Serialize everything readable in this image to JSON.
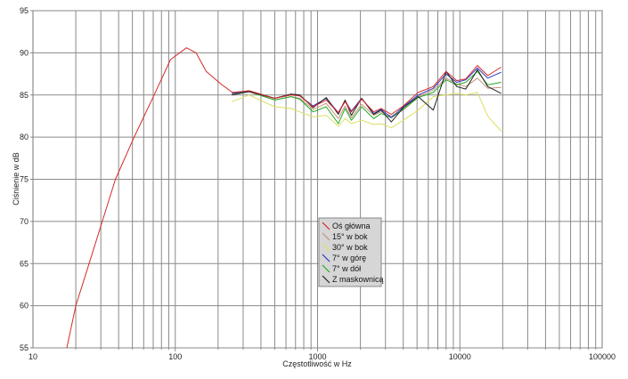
{
  "chart_data": {
    "type": "line",
    "title": "",
    "xlabel": "Częstotliwość w Hz",
    "ylabel": "Ciśnienie w dB",
    "xscale": "log",
    "xlim": [
      10,
      100000
    ],
    "ylim": [
      55,
      95
    ],
    "xticks": [
      "10",
      "100",
      "1000",
      "10000",
      "100000"
    ],
    "yticks": [
      "55",
      "60",
      "65",
      "70",
      "75",
      "80",
      "85",
      "90",
      "95"
    ],
    "grid": true,
    "legend_position": "center",
    "series": [
      {
        "name": "Oś główna",
        "color": "#d42a2a",
        "x": [
          17.3,
          20,
          24.8,
          30.7,
          38,
          51.4,
          71,
          92.6,
          120,
          140,
          165,
          213,
          253,
          330,
          500,
          650,
          750,
          930,
          1150,
          1400,
          1560,
          1730,
          2040,
          2480,
          2800,
          3300,
          4000,
          5100,
          6500,
          8000,
          9500,
          11000,
          13300,
          15700,
          19500
        ],
        "y": [
          55,
          60,
          65,
          70,
          75,
          80,
          85,
          89.2,
          90.6,
          90,
          87.8,
          86.2,
          85.3,
          85.5,
          84.6,
          85.0,
          84.9,
          83.6,
          84.4,
          82.9,
          84.2,
          83.0,
          84.5,
          83.0,
          83.4,
          82.7,
          83.7,
          85.3,
          86.0,
          87.8,
          86.7,
          86.9,
          88.5,
          87.3,
          88.3
        ]
      },
      {
        "name": "15° w bok",
        "color": "#c8907a",
        "x": [
          250,
          330,
          500,
          650,
          750,
          930,
          1150,
          1400,
          1560,
          1730,
          2040,
          2480,
          2800,
          3300,
          4000,
          5100,
          6500,
          8000,
          9500,
          11000,
          13300,
          15700,
          19500
        ],
        "y": [
          85.1,
          85.4,
          84.4,
          84.8,
          84.6,
          83.3,
          84.0,
          82.2,
          83.7,
          82.3,
          83.9,
          82.6,
          83.0,
          82.5,
          83.2,
          84.8,
          85.6,
          87.0,
          86.3,
          86.0,
          87.0,
          85.8,
          85.9
        ]
      },
      {
        "name": "30° w bok",
        "color": "#dede60",
        "x": [
          250,
          330,
          500,
          650,
          750,
          930,
          1150,
          1400,
          1560,
          1730,
          2040,
          2480,
          2800,
          3300,
          4000,
          5100,
          6500,
          8000,
          9500,
          11000,
          13300,
          15700,
          19500
        ],
        "y": [
          84.2,
          85.0,
          83.6,
          83.4,
          83.0,
          82.4,
          82.6,
          81.3,
          82.2,
          81.6,
          82.0,
          81.5,
          81.6,
          81.1,
          82.0,
          83.2,
          84.8,
          85.0,
          85.2,
          85.0,
          85.3,
          82.5,
          80.7
        ]
      },
      {
        "name": "7° w górę",
        "color": "#2a36c0",
        "x": [
          250,
          330,
          500,
          650,
          750,
          930,
          1150,
          1400,
          1560,
          1730,
          2040,
          2480,
          2800,
          3300,
          4000,
          5100,
          6500,
          8000,
          9500,
          11000,
          13300,
          15700,
          19500
        ],
        "y": [
          85.2,
          85.5,
          84.6,
          85.1,
          84.9,
          83.7,
          84.6,
          82.9,
          84.3,
          83.1,
          84.6,
          82.8,
          83.3,
          82.3,
          83.6,
          85.0,
          85.8,
          87.5,
          86.5,
          86.8,
          88.2,
          87.0,
          87.7
        ]
      },
      {
        "name": "7° w dół",
        "color": "#22aa22",
        "x": [
          250,
          330,
          500,
          650,
          750,
          930,
          1150,
          1400,
          1560,
          1730,
          2040,
          2480,
          2800,
          3300,
          4000,
          5100,
          6500,
          8000,
          9500,
          11000,
          13300,
          15700,
          19500
        ],
        "y": [
          85.2,
          85.4,
          84.4,
          84.8,
          84.5,
          83.0,
          83.6,
          81.6,
          83.4,
          82.0,
          83.6,
          82.2,
          82.8,
          82.3,
          83.3,
          84.7,
          85.3,
          86.8,
          86.2,
          86.5,
          87.8,
          86.2,
          86.5
        ]
      },
      {
        "name": "Z maskownicą",
        "color": "#222222",
        "x": [
          250,
          330,
          500,
          650,
          750,
          930,
          1150,
          1400,
          1560,
          1730,
          2040,
          2480,
          2800,
          3300,
          4000,
          5100,
          6500,
          8000,
          9500,
          11000,
          13300,
          15700,
          19500
        ],
        "y": [
          85.0,
          85.4,
          84.6,
          85.1,
          85.0,
          83.5,
          84.7,
          82.7,
          84.4,
          82.6,
          84.6,
          82.7,
          83.2,
          81.8,
          83.5,
          84.8,
          83.2,
          87.8,
          86.0,
          85.7,
          88.0,
          86.0,
          85.2
        ]
      }
    ]
  }
}
